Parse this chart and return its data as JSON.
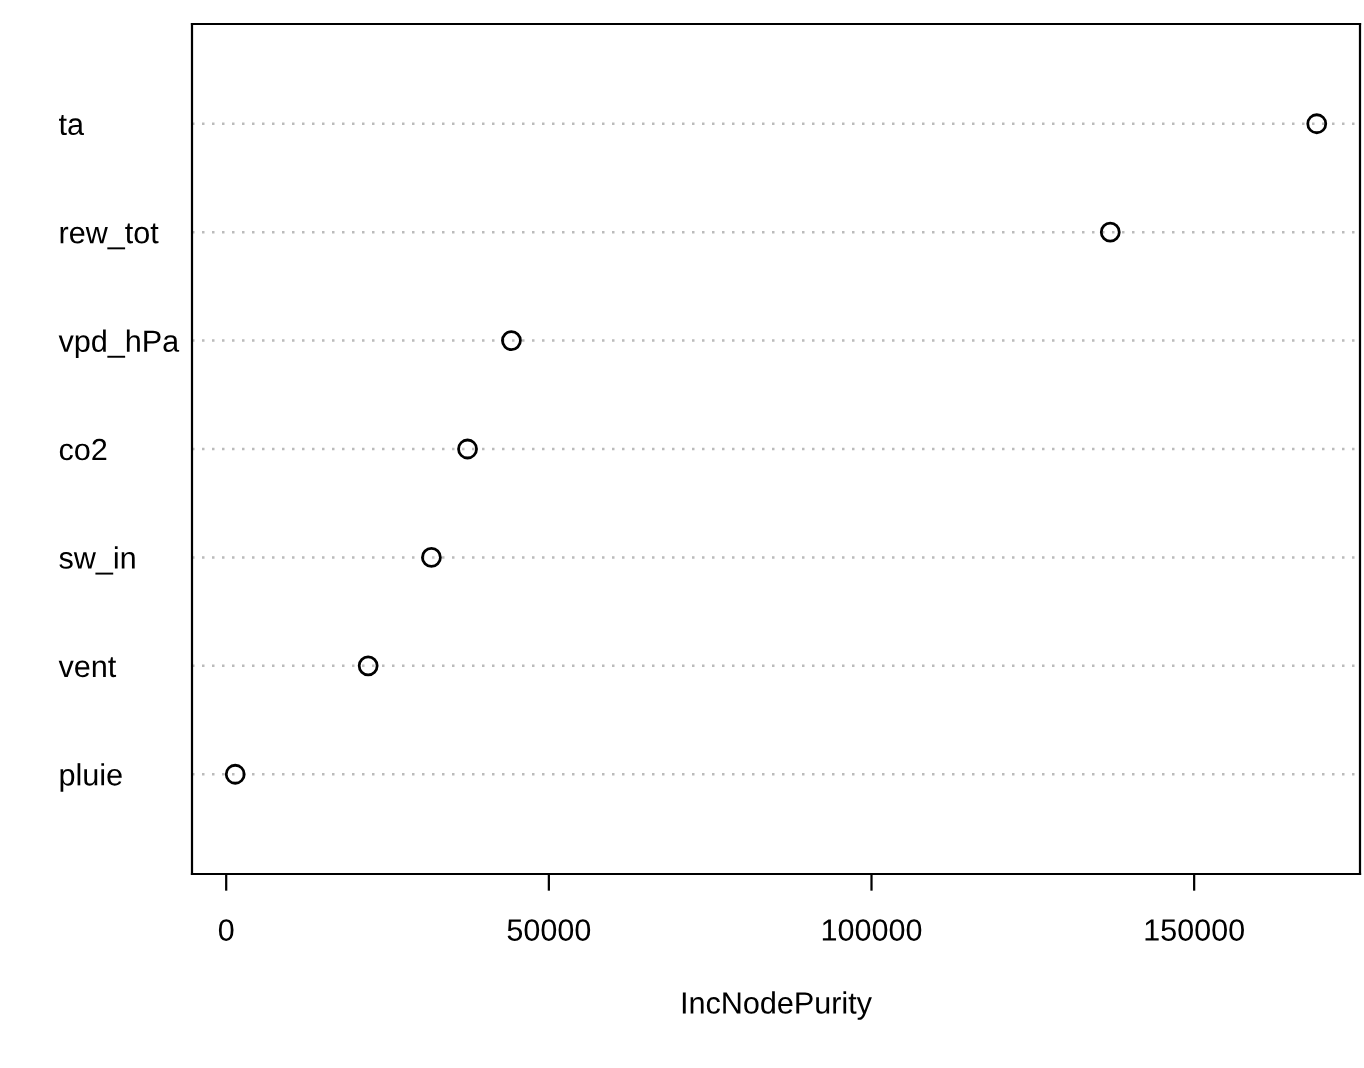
{
  "chart_data": {
    "type": "scatter",
    "xlabel": "IncNodePurity",
    "categories": [
      "ta",
      "rew_tot",
      "vpd_hPa",
      "co2",
      "sw_in",
      "vent",
      "pluie"
    ],
    "orientation": "horizontal",
    "values": [
      169000,
      137000,
      44200,
      37400,
      31800,
      22000,
      1400
    ],
    "color": "#000000",
    "marker": "circle",
    "grid": "y",
    "xlim": [
      -5300,
      175700
    ],
    "xticks": [
      0,
      50000,
      100000,
      150000
    ]
  }
}
